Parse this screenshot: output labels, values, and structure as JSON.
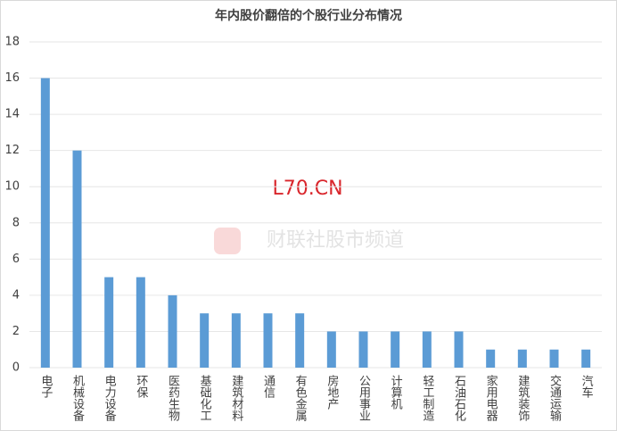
{
  "chart_data": {
    "type": "bar",
    "title": "年内股价翻倍的个股行业分布情况",
    "categories": [
      "电子",
      "机械设备",
      "电力设备",
      "环保",
      "医药生物",
      "基础化工",
      "建筑材料",
      "通信",
      "有色金属",
      "房地产",
      "公用事业",
      "计算机",
      "轻工制造",
      "石油石化",
      "家用电器",
      "建筑装饰",
      "交通运输",
      "汽车"
    ],
    "values": [
      16,
      12,
      5,
      5,
      4,
      3,
      3,
      3,
      3,
      2,
      2,
      2,
      2,
      2,
      1,
      1,
      1,
      1
    ],
    "color": "#5b9bd5",
    "ylim": [
      0,
      18
    ],
    "yticks": [
      0,
      2,
      4,
      6,
      8,
      10,
      12,
      14,
      16,
      18
    ],
    "grid": true,
    "annotations": [
      "L70.CN",
      "财联社股市频道"
    ]
  }
}
